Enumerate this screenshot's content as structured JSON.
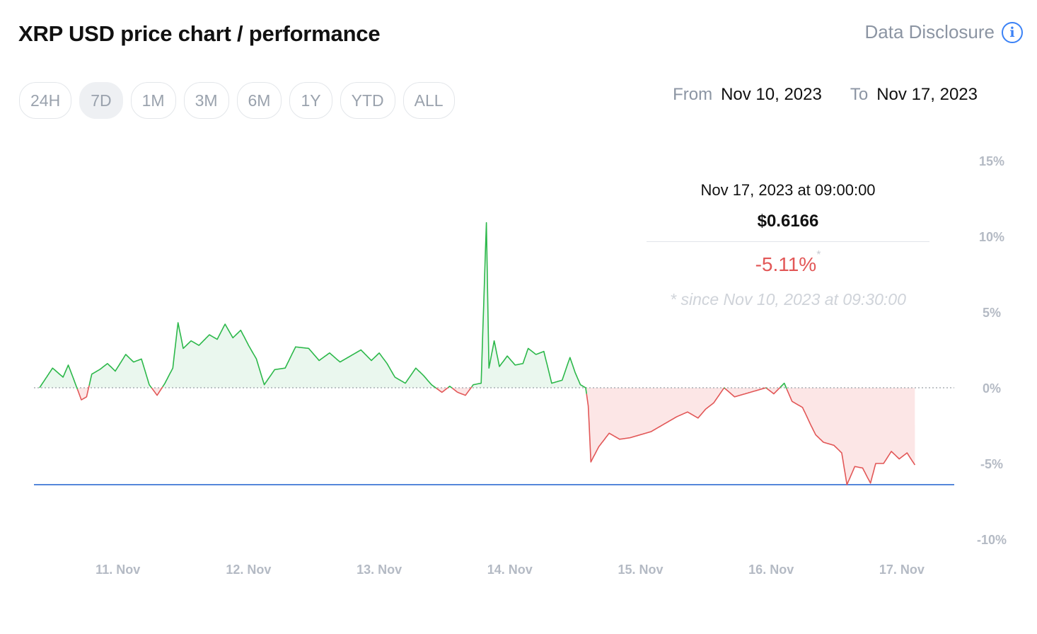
{
  "header": {
    "title": "XRP USD price chart / performance",
    "disclosure_label": "Data Disclosure"
  },
  "range_buttons": [
    {
      "label": "24H",
      "active": false
    },
    {
      "label": "7D",
      "active": true
    },
    {
      "label": "1M",
      "active": false
    },
    {
      "label": "3M",
      "active": false
    },
    {
      "label": "6M",
      "active": false
    },
    {
      "label": "1Y",
      "active": false
    },
    {
      "label": "YTD",
      "active": false
    },
    {
      "label": "ALL",
      "active": false
    }
  ],
  "date_range": {
    "from_label": "From",
    "from_value": "Nov 10, 2023",
    "to_label": "To",
    "to_value": "Nov 17, 2023"
  },
  "tooltip": {
    "datetime": "Nov 17, 2023 at 09:00:00",
    "price": "$0.6166",
    "change": "-5.11%",
    "change_marker": "*",
    "since": "* since Nov 10, 2023 at 09:30:00"
  },
  "colors": {
    "positive": "#2cb84a",
    "negative": "#e25757",
    "positive_fill": "#eaf7ee",
    "negative_fill": "#fce6e6",
    "min_line": "#4a7fd8",
    "accent": "#3b82f6"
  },
  "chart_data": {
    "type": "area",
    "title": "",
    "xlabel": "",
    "ylabel": "",
    "x_unit": "days since Nov 10, 2023 00:00",
    "ylim": [
      -10,
      15
    ],
    "yticks": [
      15,
      10,
      5,
      0,
      -5,
      -10
    ],
    "ytick_labels": [
      "15%",
      "10%",
      "5%",
      "0%",
      "-5%",
      "-10%"
    ],
    "xticks": [
      {
        "day": 1,
        "label": "11. Nov"
      },
      {
        "day": 2,
        "label": "12. Nov"
      },
      {
        "day": 3,
        "label": "13. Nov"
      },
      {
        "day": 4,
        "label": "14. Nov"
      },
      {
        "day": 5,
        "label": "15. Nov"
      },
      {
        "day": 6,
        "label": "16. Nov"
      },
      {
        "day": 7,
        "label": "17. Nov"
      }
    ],
    "baseline": 0,
    "min_value": -6.4,
    "series": [
      {
        "name": "",
        "points": [
          [
            0.4,
            0.0
          ],
          [
            0.5,
            1.3
          ],
          [
            0.58,
            0.7
          ],
          [
            0.62,
            1.5
          ],
          [
            0.66,
            0.6
          ],
          [
            0.72,
            -0.8
          ],
          [
            0.76,
            -0.6
          ],
          [
            0.8,
            0.9
          ],
          [
            0.86,
            1.2
          ],
          [
            0.92,
            1.6
          ],
          [
            0.98,
            1.1
          ],
          [
            1.06,
            2.2
          ],
          [
            1.12,
            1.7
          ],
          [
            1.18,
            1.9
          ],
          [
            1.24,
            0.2
          ],
          [
            1.3,
            -0.5
          ],
          [
            1.36,
            0.3
          ],
          [
            1.42,
            1.3
          ],
          [
            1.46,
            4.3
          ],
          [
            1.5,
            2.6
          ],
          [
            1.56,
            3.1
          ],
          [
            1.62,
            2.8
          ],
          [
            1.7,
            3.5
          ],
          [
            1.76,
            3.2
          ],
          [
            1.82,
            4.2
          ],
          [
            1.88,
            3.3
          ],
          [
            1.94,
            3.8
          ],
          [
            2.0,
            2.8
          ],
          [
            2.06,
            1.9
          ],
          [
            2.12,
            0.2
          ],
          [
            2.2,
            1.2
          ],
          [
            2.28,
            1.3
          ],
          [
            2.36,
            2.7
          ],
          [
            2.46,
            2.6
          ],
          [
            2.54,
            1.8
          ],
          [
            2.62,
            2.3
          ],
          [
            2.7,
            1.7
          ],
          [
            2.78,
            2.1
          ],
          [
            2.86,
            2.5
          ],
          [
            2.94,
            1.8
          ],
          [
            3.0,
            2.3
          ],
          [
            3.06,
            1.6
          ],
          [
            3.12,
            0.7
          ],
          [
            3.2,
            0.3
          ],
          [
            3.28,
            1.3
          ],
          [
            3.34,
            0.8
          ],
          [
            3.4,
            0.2
          ],
          [
            3.48,
            -0.3
          ],
          [
            3.54,
            0.1
          ],
          [
            3.6,
            -0.3
          ],
          [
            3.66,
            -0.5
          ],
          [
            3.72,
            0.2
          ],
          [
            3.78,
            0.3
          ],
          [
            3.82,
            10.9
          ],
          [
            3.84,
            1.3
          ],
          [
            3.88,
            3.1
          ],
          [
            3.92,
            1.4
          ],
          [
            3.98,
            2.1
          ],
          [
            4.04,
            1.5
          ],
          [
            4.1,
            1.6
          ],
          [
            4.14,
            2.6
          ],
          [
            4.2,
            2.2
          ],
          [
            4.26,
            2.4
          ],
          [
            4.32,
            0.3
          ],
          [
            4.4,
            0.5
          ],
          [
            4.46,
            2.0
          ],
          [
            4.5,
            1.0
          ],
          [
            4.54,
            0.2
          ],
          [
            4.58,
            0.0
          ],
          [
            4.6,
            -1.2
          ],
          [
            4.62,
            -4.9
          ],
          [
            4.68,
            -3.9
          ],
          [
            4.76,
            -3.0
          ],
          [
            4.84,
            -3.4
          ],
          [
            4.92,
            -3.3
          ],
          [
            5.0,
            -3.1
          ],
          [
            5.08,
            -2.9
          ],
          [
            5.14,
            -2.6
          ],
          [
            5.2,
            -2.3
          ],
          [
            5.28,
            -1.9
          ],
          [
            5.36,
            -1.6
          ],
          [
            5.44,
            -2.0
          ],
          [
            5.5,
            -1.4
          ],
          [
            5.56,
            -1.0
          ],
          [
            5.64,
            0.0
          ],
          [
            5.72,
            -0.6
          ],
          [
            5.8,
            -0.4
          ],
          [
            5.88,
            -0.2
          ],
          [
            5.96,
            0.0
          ],
          [
            6.02,
            -0.4
          ],
          [
            6.1,
            0.3
          ],
          [
            6.16,
            -0.9
          ],
          [
            6.24,
            -1.3
          ],
          [
            6.3,
            -2.4
          ],
          [
            6.34,
            -3.1
          ],
          [
            6.4,
            -3.6
          ],
          [
            6.48,
            -3.8
          ],
          [
            6.54,
            -4.3
          ],
          [
            6.58,
            -6.4
          ],
          [
            6.64,
            -5.2
          ],
          [
            6.7,
            -5.3
          ],
          [
            6.76,
            -6.3
          ],
          [
            6.8,
            -5.0
          ],
          [
            6.86,
            -5.0
          ],
          [
            6.92,
            -4.2
          ],
          [
            6.98,
            -4.7
          ],
          [
            7.04,
            -4.3
          ],
          [
            7.1,
            -5.1
          ]
        ]
      }
    ]
  }
}
